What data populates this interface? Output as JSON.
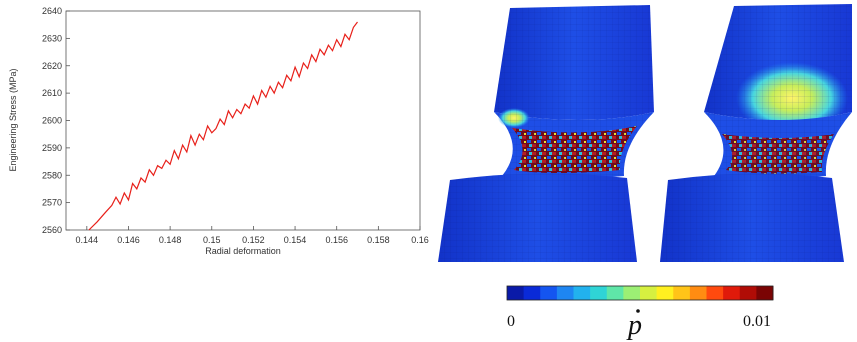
{
  "chart_data": {
    "type": "line",
    "title": "",
    "xlabel": "Radial deformation",
    "ylabel": "Engineering Stress (MPa)",
    "xlim": [
      0.143,
      0.16
    ],
    "ylim": [
      2560,
      2640
    ],
    "x_ticks": [
      "0.144",
      "0.146",
      "0.148",
      "0.15",
      "0.152",
      "0.154",
      "0.156",
      "0.158",
      "0.16"
    ],
    "y_ticks": [
      "2560",
      "2570",
      "2580",
      "2590",
      "2600",
      "2610",
      "2620",
      "2630",
      "2640"
    ],
    "grid": false,
    "legend": "none",
    "series": [
      {
        "color": "#e8201a",
        "x": [
          0.1441,
          0.1445,
          0.1449,
          0.1452,
          0.1454,
          0.1456,
          0.1458,
          0.146,
          0.1462,
          0.1464,
          0.1466,
          0.1468,
          0.147,
          0.1472,
          0.1474,
          0.1476,
          0.1478,
          0.148,
          0.1482,
          0.1484,
          0.1486,
          0.1488,
          0.149,
          0.1492,
          0.1494,
          0.1496,
          0.1498,
          0.15,
          0.1502,
          0.1504,
          0.1506,
          0.1508,
          0.151,
          0.1512,
          0.1514,
          0.1516,
          0.1518,
          0.152,
          0.1522,
          0.1524,
          0.1526,
          0.1528,
          0.153,
          0.1532,
          0.1534,
          0.1536,
          0.1538,
          0.154,
          0.1542,
          0.1544,
          0.1546,
          0.1548,
          0.155,
          0.1552,
          0.1554,
          0.1556,
          0.1558,
          0.156,
          0.1562,
          0.1564,
          0.1566,
          0.1568,
          0.157
        ],
        "y": [
          2560.0,
          2563.0,
          2566.5,
          2569.0,
          2572.0,
          2569.5,
          2573.5,
          2571.0,
          2577.0,
          2575.0,
          2579.0,
          2577.5,
          2582.0,
          2580.0,
          2583.5,
          2582.5,
          2585.5,
          2584.0,
          2589.0,
          2586.0,
          2591.0,
          2588.5,
          2594.5,
          2591.0,
          2595.0,
          2593.0,
          2598.0,
          2595.5,
          2597.0,
          2600.5,
          2598.5,
          2603.5,
          2601.0,
          2604.0,
          2602.5,
          2606.0,
          2604.5,
          2609.0,
          2606.0,
          2611.0,
          2608.5,
          2612.5,
          2610.0,
          2614.0,
          2612.0,
          2616.5,
          2614.5,
          2619.5,
          2616.0,
          2621.0,
          2619.0,
          2624.0,
          2621.5,
          2626.0,
          2624.0,
          2627.5,
          2625.5,
          2629.5,
          2627.0,
          2631.5,
          2629.5,
          2634.0,
          2636.0
        ]
      }
    ]
  },
  "colorbar": {
    "min_label": "0",
    "max_label": "0.01",
    "symbol": "p",
    "colors": [
      "#0a1aa8",
      "#0a2ad8",
      "#1455f0",
      "#1e86f2",
      "#22b2ee",
      "#2fd4d6",
      "#5fe6a8",
      "#9cef74",
      "#d6f040",
      "#fff020",
      "#ffc418",
      "#ff8c12",
      "#ff4a0e",
      "#e01a0a",
      "#b00c06",
      "#7a0404"
    ]
  }
}
